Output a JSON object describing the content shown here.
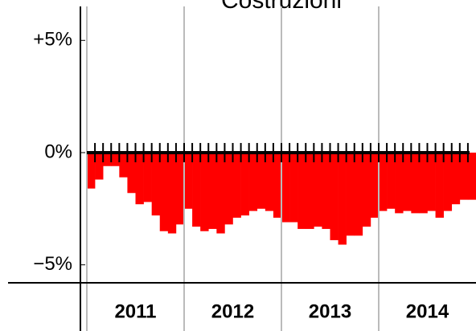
{
  "chart_data": {
    "type": "bar",
    "title": "Costruzioni",
    "categories": [
      null,
      null,
      null,
      null,
      null,
      null,
      null,
      null,
      null,
      null,
      null,
      null,
      null,
      null,
      null,
      null,
      null,
      null,
      null,
      null,
      null,
      null,
      null,
      null,
      null,
      null,
      null,
      null,
      null,
      null,
      null,
      null,
      null,
      null,
      null,
      null,
      null,
      null,
      null,
      null,
      null,
      null,
      null,
      null,
      null,
      null,
      null,
      null
    ],
    "groups": [
      "2011",
      "2012",
      "2013",
      "2014"
    ],
    "values": [
      -1.6,
      -1.2,
      -0.6,
      -0.6,
      -1.1,
      -1.8,
      -2.3,
      -2.2,
      -2.8,
      -3.5,
      -3.6,
      -3.2,
      -2.5,
      -3.3,
      -3.5,
      -3.4,
      -3.6,
      -3.2,
      -2.9,
      -2.8,
      -2.6,
      -2.5,
      -2.6,
      -2.9,
      -3.1,
      -3.1,
      -3.4,
      -3.4,
      -3.3,
      -3.4,
      -3.9,
      -4.1,
      -3.7,
      -3.7,
      -3.3,
      -2.9,
      -2.6,
      -2.5,
      -2.7,
      -2.6,
      -2.7,
      -2.7,
      -2.6,
      -2.9,
      -2.6,
      -2.3,
      -2.1,
      -2.1
    ],
    "color": "#ff0000",
    "ylim": [
      -5.8,
      6.8
    ],
    "yticks": [
      {
        "value": 5,
        "label": "+5%"
      },
      {
        "value": 0,
        "label": "0%"
      },
      {
        "value": -5,
        "label": "−5%"
      }
    ],
    "grid": true
  }
}
